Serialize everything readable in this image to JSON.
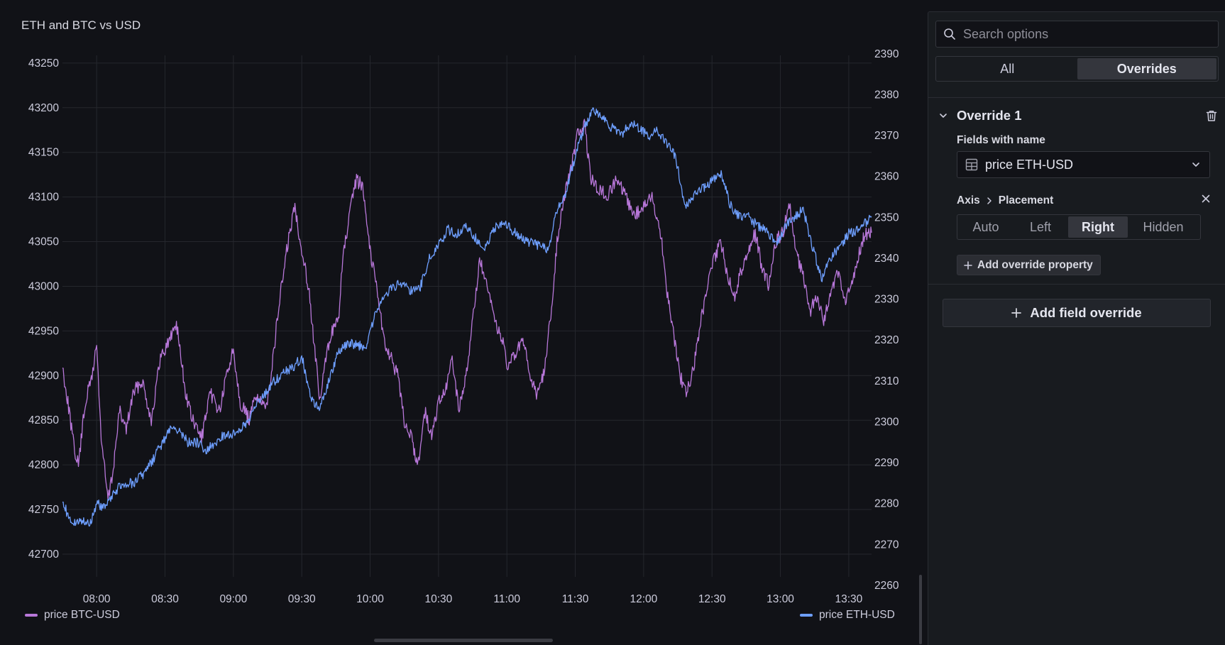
{
  "panel": {
    "title": "ETH and BTC vs USD"
  },
  "chart_data": {
    "type": "line",
    "title": "ETH and BTC vs USD",
    "x_ticks": [
      "08:00",
      "08:30",
      "09:00",
      "09:30",
      "10:00",
      "10:30",
      "11:00",
      "11:30",
      "12:00",
      "12:30",
      "13:00",
      "13:30"
    ],
    "xlim": [
      "07:45",
      "13:40"
    ],
    "left_axis": {
      "ticks": [
        "42700",
        "42750",
        "42800",
        "42850",
        "42900",
        "42950",
        "43000",
        "43050",
        "43100",
        "43150",
        "43200",
        "43250"
      ],
      "ylim": [
        42665,
        43265
      ]
    },
    "right_axis": {
      "ticks": [
        "2260",
        "2270",
        "2280",
        "2290",
        "2300",
        "2310",
        "2320",
        "2330",
        "2340",
        "2350",
        "2360",
        "2370",
        "2380",
        "2390"
      ],
      "ylim": [
        2260,
        2391
      ]
    },
    "grid": true,
    "legend_placement": "bottom",
    "series": [
      {
        "name": "price BTC-USD",
        "axis": "left",
        "color": "#b877d9",
        "x": [
          "07:45",
          "07:48",
          "07:50",
          "07:52",
          "07:55",
          "07:58",
          "08:00",
          "08:02",
          "08:05",
          "08:07",
          "08:10",
          "08:13",
          "08:16",
          "08:20",
          "08:24",
          "08:28",
          "08:32",
          "08:35",
          "08:39",
          "08:42",
          "08:46",
          "08:50",
          "08:54",
          "08:57",
          "09:00",
          "09:03",
          "09:07",
          "09:10",
          "09:14",
          "09:17",
          "09:20",
          "09:24",
          "09:27",
          "09:30",
          "09:33",
          "09:36",
          "09:38",
          "09:40",
          "09:43",
          "09:46",
          "09:48",
          "09:51",
          "09:54",
          "09:57",
          "10:00",
          "10:03",
          "10:06",
          "10:09",
          "10:12",
          "10:15",
          "10:18",
          "10:21",
          "10:24",
          "10:27",
          "10:30",
          "10:33",
          "10:36",
          "10:39",
          "10:42",
          "10:45",
          "10:48",
          "10:51",
          "10:55",
          "10:58",
          "11:00",
          "11:03",
          "11:07",
          "11:10",
          "11:13",
          "11:16",
          "11:19",
          "11:22",
          "11:25",
          "11:28",
          "11:31",
          "11:34",
          "11:37",
          "11:40",
          "11:44",
          "11:48",
          "11:52",
          "11:56",
          "12:00",
          "12:04",
          "12:08",
          "12:10",
          "12:13",
          "12:16",
          "12:19",
          "12:22",
          "12:25",
          "12:28",
          "12:31",
          "12:34",
          "12:37",
          "12:40",
          "12:43",
          "12:46",
          "12:49",
          "12:52",
          "12:55",
          "12:58",
          "13:01",
          "13:04",
          "13:07",
          "13:10",
          "13:13",
          "13:16",
          "13:19",
          "13:22",
          "13:25",
          "13:28",
          "13:31",
          "13:34",
          "13:37",
          "13:40"
        ],
        "values": [
          42910,
          42860,
          42820,
          42800,
          42870,
          42900,
          42935,
          42830,
          42760,
          42790,
          42860,
          42840,
          42880,
          42895,
          42850,
          42920,
          42940,
          42960,
          42880,
          42850,
          42830,
          42880,
          42860,
          42900,
          42930,
          42870,
          42850,
          42880,
          42860,
          42910,
          42980,
          43050,
          43090,
          43040,
          43000,
          42920,
          42870,
          42910,
          42950,
          42960,
          43030,
          43080,
          43120,
          43110,
          43040,
          43000,
          42940,
          42920,
          42900,
          42850,
          42830,
          42800,
          42860,
          42830,
          42870,
          42880,
          42920,
          42860,
          42900,
          42960,
          43030,
          43000,
          42960,
          42940,
          42910,
          42920,
          42940,
          42900,
          42880,
          42900,
          42960,
          43050,
          43100,
          43130,
          43170,
          43180,
          43120,
          43110,
          43100,
          43120,
          43100,
          43080,
          43090,
          43100,
          43050,
          43000,
          42950,
          42900,
          42880,
          42910,
          42960,
          43000,
          43030,
          43050,
          43010,
          42990,
          43020,
          43040,
          43060,
          43020,
          43000,
          43050,
          43060,
          43090,
          43040,
          43010,
          42970,
          42990,
          42960,
          42990,
          43020,
          42980,
          43000,
          43030,
          43060,
          43060
        ]
      },
      {
        "name": "price ETH-USD",
        "axis": "right",
        "color": "#6e9fff",
        "x": [
          "07:45",
          "07:48",
          "07:51",
          "07:54",
          "07:57",
          "08:00",
          "08:04",
          "08:08",
          "08:12",
          "08:16",
          "08:20",
          "08:24",
          "08:28",
          "08:32",
          "08:36",
          "08:40",
          "08:44",
          "08:48",
          "08:52",
          "08:56",
          "09:00",
          "09:03",
          "09:06",
          "09:10",
          "09:14",
          "09:18",
          "09:22",
          "09:26",
          "09:30",
          "09:34",
          "09:38",
          "09:42",
          "09:46",
          "09:50",
          "09:54",
          "09:58",
          "10:02",
          "10:06",
          "10:10",
          "10:14",
          "10:18",
          "10:22",
          "10:26",
          "10:30",
          "10:34",
          "10:38",
          "10:42",
          "10:46",
          "10:50",
          "10:54",
          "10:58",
          "11:02",
          "11:06",
          "11:10",
          "11:14",
          "11:18",
          "11:22",
          "11:26",
          "11:30",
          "11:34",
          "11:38",
          "11:42",
          "11:46",
          "11:50",
          "11:54",
          "11:58",
          "12:02",
          "12:06",
          "12:10",
          "12:14",
          "12:18",
          "12:22",
          "12:26",
          "12:30",
          "12:34",
          "12:38",
          "12:42",
          "12:46",
          "12:50",
          "12:54",
          "12:58",
          "13:02",
          "13:06",
          "13:10",
          "13:14",
          "13:18",
          "13:22",
          "13:26",
          "13:30",
          "13:34",
          "13:38",
          "13:40"
        ],
        "values": [
          2281,
          2276,
          2275,
          2276,
          2275,
          2280,
          2279,
          2283,
          2285,
          2285,
          2287,
          2290,
          2294,
          2298,
          2298,
          2295,
          2295,
          2293,
          2295,
          2297,
          2297,
          2298,
          2300,
          2304,
          2307,
          2310,
          2312,
          2313,
          2316,
          2306,
          2303,
          2310,
          2317,
          2319,
          2319,
          2318,
          2326,
          2331,
          2333,
          2334,
          2332,
          2333,
          2340,
          2343,
          2347,
          2346,
          2348,
          2345,
          2342,
          2347,
          2349,
          2347,
          2345,
          2344,
          2343,
          2342,
          2352,
          2356,
          2365,
          2372,
          2376,
          2374,
          2372,
          2370,
          2373,
          2372,
          2370,
          2371,
          2368,
          2365,
          2353,
          2355,
          2357,
          2359,
          2361,
          2353,
          2350,
          2350,
          2348,
          2347,
          2343,
          2348,
          2350,
          2352,
          2343,
          2335,
          2340,
          2343,
          2346,
          2347,
          2349,
          2350
        ]
      }
    ]
  },
  "legend": {
    "btc_label": "price BTC-USD",
    "eth_label": "price ETH-USD"
  },
  "options": {
    "search_placeholder": "Search options",
    "tabs": [
      {
        "label": "All",
        "active": false
      },
      {
        "label": "Overrides",
        "active": true
      }
    ],
    "override": {
      "title": "Override 1",
      "matcher_label": "Fields with name",
      "matcher_value": "price ETH-USD",
      "property_group": "Axis",
      "property_name": "Placement",
      "placement_options": [
        "Auto",
        "Left",
        "Right",
        "Hidden"
      ],
      "placement_selected": "Right",
      "add_property_label": "Add override property"
    },
    "add_field_override_label": "Add field override"
  }
}
